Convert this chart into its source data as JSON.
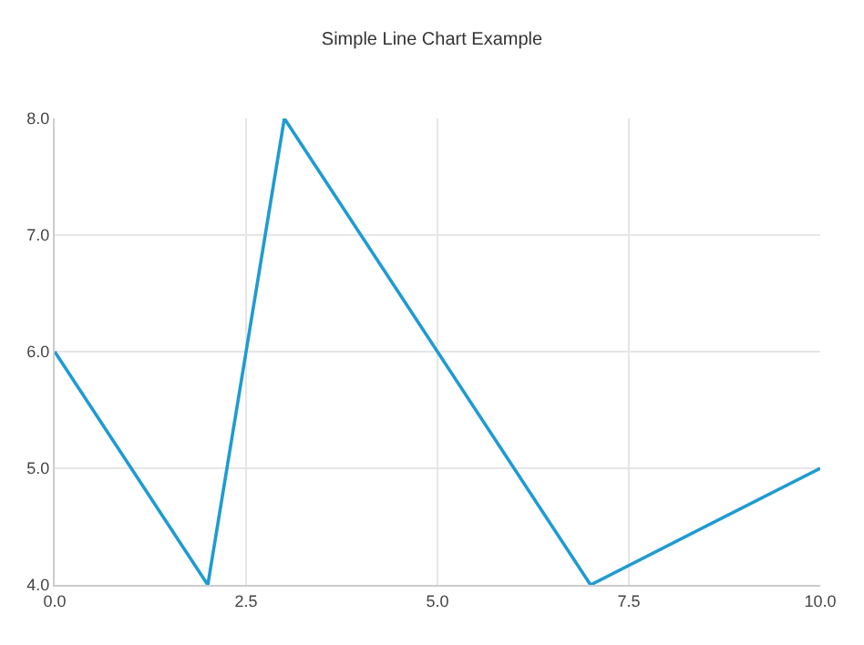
{
  "chart_data": {
    "type": "line",
    "title": "Simple Line Chart Example",
    "x": [
      0,
      2,
      3,
      7,
      10
    ],
    "series": [
      {
        "color": "#1f9bd1",
        "values": [
          6,
          4,
          8,
          4,
          5
        ]
      }
    ],
    "xlim": [
      0,
      10
    ],
    "xticks": [
      {
        "value": 0,
        "label": "0.0"
      },
      {
        "value": 2.5,
        "label": "2.5"
      },
      {
        "value": 5,
        "label": "5.0"
      },
      {
        "value": 7.5,
        "label": "7.5"
      },
      {
        "value": 10,
        "label": "10.0"
      }
    ],
    "ylim": [
      4,
      8
    ],
    "yticks": [
      {
        "value": 4,
        "label": "4.0"
      },
      {
        "value": 5,
        "label": "5.0"
      },
      {
        "value": 6,
        "label": "6.0"
      },
      {
        "value": 7,
        "label": "7.0"
      },
      {
        "value": 8,
        "label": "8.0"
      }
    ],
    "grid": true,
    "marker": "none",
    "line_style": "solid"
  }
}
